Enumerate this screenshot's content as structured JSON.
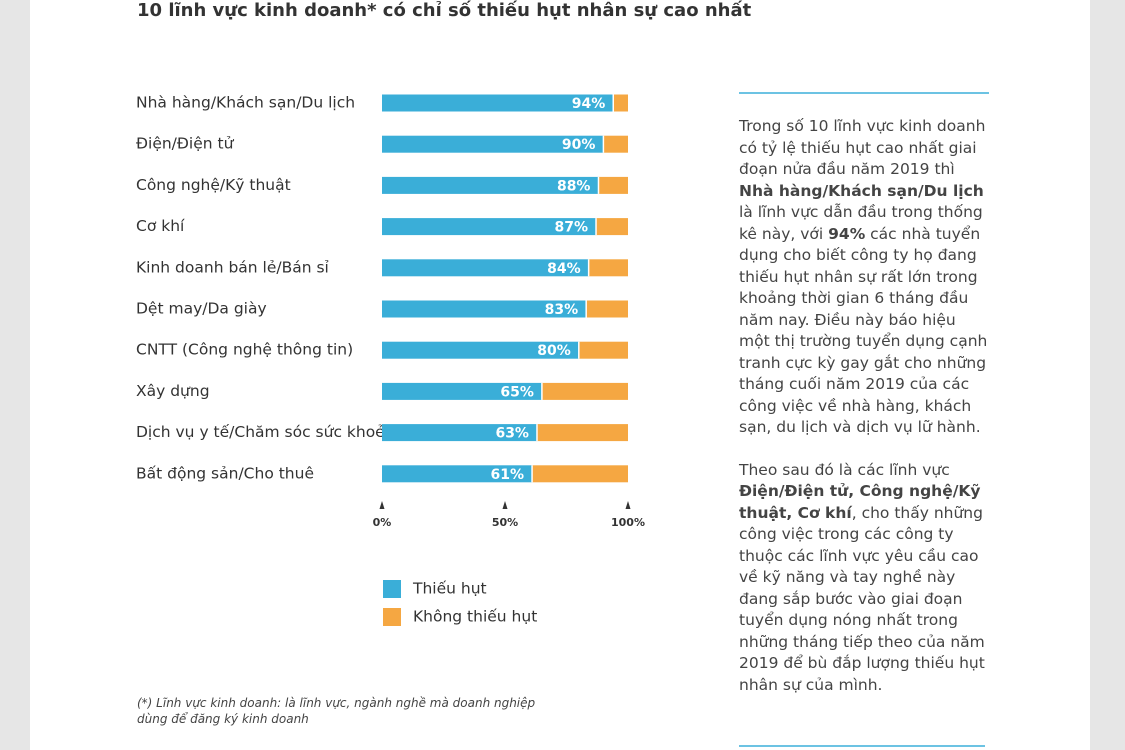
{
  "chart_data": {
    "type": "stacked-bar-horizontal",
    "title": "10 lĩnh vực kinh doanh* có chỉ số thiếu hụt nhân sự cao nhất",
    "categories": [
      "Nhà hàng/Khách sạn/Du lịch",
      "Điện/Điện tử",
      "Công nghệ/Kỹ thuật",
      "Cơ khí",
      "Kinh doanh bán lẻ/Bán sỉ",
      "Dệt may/Da giày",
      "CNTT (Công nghệ thông tin)",
      "Xây dựng",
      "Dịch vụ y tế/Chăm sóc sức khoẻ",
      "Bất động sản/Cho thuê"
    ],
    "series": [
      {
        "name": "Thiếu hụt",
        "color": "#3aaed8",
        "values": [
          94,
          90,
          88,
          87,
          84,
          83,
          80,
          65,
          63,
          61
        ],
        "value_labels": [
          "94%",
          "90%",
          "88%",
          "87%",
          "84%",
          "83%",
          "80%",
          "65%",
          "63%",
          "61%"
        ]
      },
      {
        "name": "Không thiếu hụt",
        "color": "#f5a742",
        "values": [
          6,
          10,
          12,
          13,
          16,
          17,
          20,
          35,
          37,
          39
        ]
      }
    ],
    "xlim": [
      0,
      100
    ],
    "xticks": [
      {
        "value": 0,
        "label": "0%"
      },
      {
        "value": 50,
        "label": "50%"
      },
      {
        "value": 100,
        "label": "100%"
      }
    ],
    "footnote": "(*) Lĩnh vực kinh doanh: là lĩnh vực, ngành nghề mà doanh nghiệp dùng để đăng ký kinh doanh"
  },
  "text_panel": {
    "paragraphs": [
      [
        {
          "text": "Trong số 10 lĩnh vực kinh doanh có tỷ lệ thiếu hụt cao nhất giai đoạn nửa đầu năm 2019 thì ",
          "bold": false
        },
        {
          "text": "Nhà hàng/Khách sạn/Du lịch",
          "bold": true
        },
        {
          "text": " là lĩnh vực dẫn đầu trong thống kê này, với ",
          "bold": false
        },
        {
          "text": "94%",
          "bold": true
        },
        {
          "text": " các nhà tuyển dụng cho biết công ty họ đang thiếu hụt nhân sự rất lớn trong khoảng thời gian 6 tháng đầu năm nay. Điều này báo hiệu một thị trường tuyển dụng cạnh tranh cực kỳ gay gắt cho những tháng cuối năm 2019 của các công việc về nhà hàng, khách sạn, du lịch và dịch vụ lữ hành.",
          "bold": false
        }
      ],
      [
        {
          "text": "Theo sau đó là các lĩnh vực ",
          "bold": false
        },
        {
          "text": "Điện/Điện tử, Công nghệ/Kỹ thuật, Cơ khí",
          "bold": true
        },
        {
          "text": ", cho thấy những công việc trong các công ty thuộc các lĩnh vực yêu cầu cao về kỹ năng và tay nghề này đang sắp bước vào giai đoạn tuyển dụng nóng nhất trong những tháng tiếp theo của năm 2019 để bù đắp lượng thiếu hụt nhân sự của mình.",
          "bold": false
        }
      ]
    ]
  }
}
